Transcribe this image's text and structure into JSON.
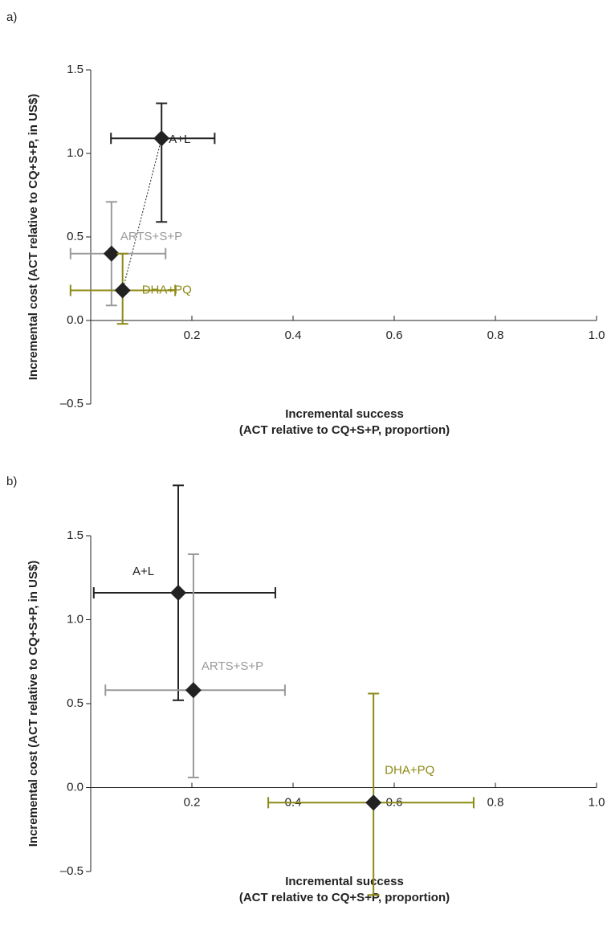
{
  "chart_data": [
    {
      "type": "scatter",
      "panel_label": "a)",
      "xlabel": [
        "Incremental success",
        "(ACT relative to CQ+S+P, proportion)"
      ],
      "ylabel": "Incremental cost (ACT relative to CQ+S+P, in US$)",
      "xlim": [
        0,
        1
      ],
      "ylim": [
        -0.5,
        1.5
      ],
      "xticks": [
        0.2,
        0.4,
        0.6,
        0.8,
        {
          "value": 1,
          "label": "1.0"
        }
      ],
      "yticks": [
        {
          "value": -0.5,
          "label": "–0.5"
        },
        {
          "value": 0,
          "label": "0.0"
        },
        0.5,
        {
          "value": 1,
          "label": "1.0"
        },
        1.5
      ],
      "series": [
        {
          "name": "A+L",
          "color": "#222222",
          "x": [
            0.14
          ],
          "values": [
            1.09
          ],
          "x_lower": [
            0.04
          ],
          "x_upper": [
            0.245
          ],
          "y_lower": [
            0.59
          ],
          "y_upper": [
            1.3
          ]
        },
        {
          "name": "ARTS+S+P",
          "color": "#9a9a9a",
          "x": [
            0.041
          ],
          "values": [
            0.4
          ],
          "x_lower": [
            -0.04
          ],
          "x_upper": [
            0.148
          ],
          "y_lower": [
            0.09
          ],
          "y_upper": [
            0.71
          ]
        },
        {
          "name": "DHA+PQ",
          "color": "#8c8a14",
          "x": [
            0.063
          ],
          "values": [
            0.18
          ],
          "x_lower": [
            -0.04
          ],
          "x_upper": [
            0.167
          ],
          "y_lower": [
            -0.02
          ],
          "y_upper": [
            0.4
          ]
        }
      ]
    },
    {
      "type": "scatter",
      "panel_label": "b)",
      "xlabel": [
        "Incremental success",
        "(ACT relative to CQ+S+P, proportion)"
      ],
      "ylabel": "Incremental cost (ACT relative to CQ+S+P, in US$)",
      "xlim": [
        0,
        1
      ],
      "ylim": [
        -0.5,
        1.5
      ],
      "xticks": [
        0.2,
        0.4,
        0.6,
        0.8,
        {
          "value": 1,
          "label": "1.0"
        }
      ],
      "yticks": [
        {
          "value": -0.5,
          "label": "–0.5"
        },
        {
          "value": 0,
          "label": "0.0"
        },
        0.5,
        {
          "value": 1,
          "label": "1.0"
        },
        1.5
      ],
      "series": [
        {
          "name": "A+L",
          "color": "#222222",
          "x": [
            0.173
          ],
          "values": [
            1.16
          ],
          "x_lower": [
            0.006
          ],
          "x_upper": [
            0.365
          ],
          "y_lower": [
            0.52
          ],
          "y_upper": [
            1.8
          ]
        },
        {
          "name": "ARTS+S+P",
          "color": "#9a9a9a",
          "x": [
            0.203
          ],
          "values": [
            0.58
          ],
          "x_lower": [
            0.029
          ],
          "x_upper": [
            0.384
          ],
          "y_lower": [
            0.06
          ],
          "y_upper": [
            1.39
          ]
        },
        {
          "name": "DHA+PQ",
          "color": "#8c8a14",
          "x": [
            0.559
          ],
          "values": [
            -0.09
          ],
          "x_lower": [
            0.351
          ],
          "x_upper": [
            0.757
          ],
          "y_lower": [
            -0.64
          ],
          "y_upper": [
            0.56
          ]
        }
      ]
    }
  ]
}
